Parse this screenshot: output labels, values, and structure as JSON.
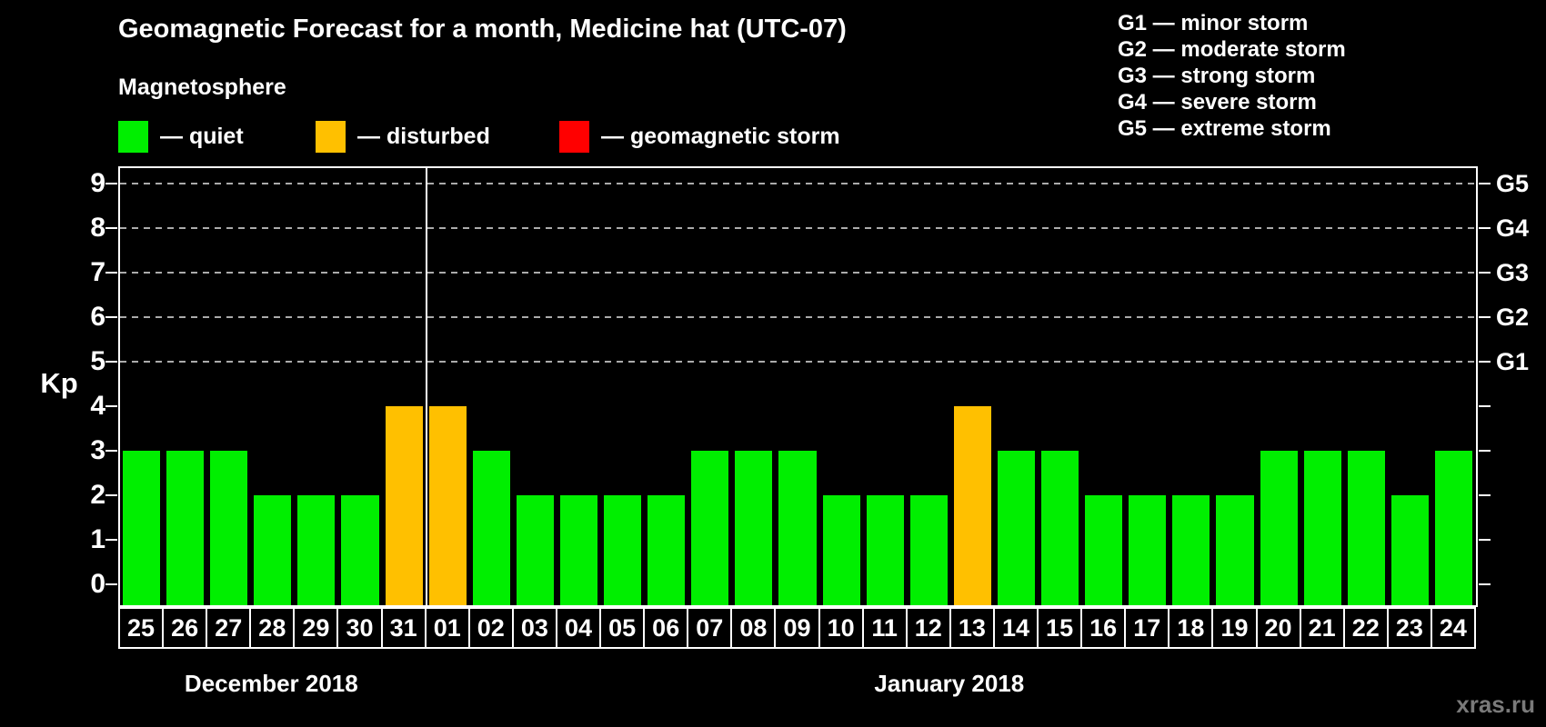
{
  "title": "Geomagnetic Forecast for a month, Medicine hat (UTC-07)",
  "legend_title": "Magnetosphere",
  "legend": {
    "items": [
      {
        "status": "quiet",
        "label": "— quiet",
        "color": "#00ef00"
      },
      {
        "status": "disturbed",
        "label": "— disturbed",
        "color": "#ffc000"
      },
      {
        "status": "storm",
        "label": "— geomagnetic storm",
        "color": "#ff0000"
      }
    ]
  },
  "g_legend": [
    "G1 — minor storm",
    "G2 — moderate storm",
    "G3 — strong storm",
    "G4 — severe storm",
    "G5 — extreme storm"
  ],
  "watermark": "xras.ru",
  "chart_data": {
    "type": "bar",
    "title": "Geomagnetic Forecast for a month, Medicine hat (UTC-07)",
    "ylabel": "Kp",
    "ylim": [
      0,
      9.5
    ],
    "yticks": [
      0,
      1,
      2,
      3,
      4,
      5,
      6,
      7,
      8,
      9
    ],
    "gridlines_at": [
      5,
      6,
      7,
      8,
      9
    ],
    "grid_style": "dashed",
    "right_axis": [
      {
        "kp": 5,
        "label": "G1"
      },
      {
        "kp": 6,
        "label": "G2"
      },
      {
        "kp": 7,
        "label": "G3"
      },
      {
        "kp": 8,
        "label": "G4"
      },
      {
        "kp": 9,
        "label": "G5"
      }
    ],
    "months": [
      {
        "label": "December 2018",
        "days": 7
      },
      {
        "label": "January 2018",
        "days": 24
      }
    ],
    "colors": {
      "quiet": "#00ef00",
      "disturbed": "#ffc000",
      "storm": "#ff0000"
    },
    "background": "#000000",
    "axis_color": "#ffffff",
    "gridline_color": "#ababab",
    "bars": [
      {
        "day": "25",
        "kp": 3,
        "status": "quiet"
      },
      {
        "day": "26",
        "kp": 3,
        "status": "quiet"
      },
      {
        "day": "27",
        "kp": 3,
        "status": "quiet"
      },
      {
        "day": "28",
        "kp": 2,
        "status": "quiet"
      },
      {
        "day": "29",
        "kp": 2,
        "status": "quiet"
      },
      {
        "day": "30",
        "kp": 2,
        "status": "quiet"
      },
      {
        "day": "31",
        "kp": 4,
        "status": "disturbed"
      },
      {
        "day": "01",
        "kp": 4,
        "status": "disturbed"
      },
      {
        "day": "02",
        "kp": 3,
        "status": "quiet"
      },
      {
        "day": "03",
        "kp": 2,
        "status": "quiet"
      },
      {
        "day": "04",
        "kp": 2,
        "status": "quiet"
      },
      {
        "day": "05",
        "kp": 2,
        "status": "quiet"
      },
      {
        "day": "06",
        "kp": 2,
        "status": "quiet"
      },
      {
        "day": "07",
        "kp": 3,
        "status": "quiet"
      },
      {
        "day": "08",
        "kp": 3,
        "status": "quiet"
      },
      {
        "day": "09",
        "kp": 3,
        "status": "quiet"
      },
      {
        "day": "10",
        "kp": 2,
        "status": "quiet"
      },
      {
        "day": "11",
        "kp": 2,
        "status": "quiet"
      },
      {
        "day": "12",
        "kp": 2,
        "status": "quiet"
      },
      {
        "day": "13",
        "kp": 4,
        "status": "disturbed"
      },
      {
        "day": "14",
        "kp": 3,
        "status": "quiet"
      },
      {
        "day": "15",
        "kp": 3,
        "status": "quiet"
      },
      {
        "day": "16",
        "kp": 2,
        "status": "quiet"
      },
      {
        "day": "17",
        "kp": 2,
        "status": "quiet"
      },
      {
        "day": "18",
        "kp": 2,
        "status": "quiet"
      },
      {
        "day": "19",
        "kp": 2,
        "status": "quiet"
      },
      {
        "day": "20",
        "kp": 3,
        "status": "quiet"
      },
      {
        "day": "21",
        "kp": 3,
        "status": "quiet"
      },
      {
        "day": "22",
        "kp": 3,
        "status": "quiet"
      },
      {
        "day": "23",
        "kp": 2,
        "status": "quiet"
      },
      {
        "day": "24",
        "kp": 3,
        "status": "quiet"
      }
    ]
  }
}
